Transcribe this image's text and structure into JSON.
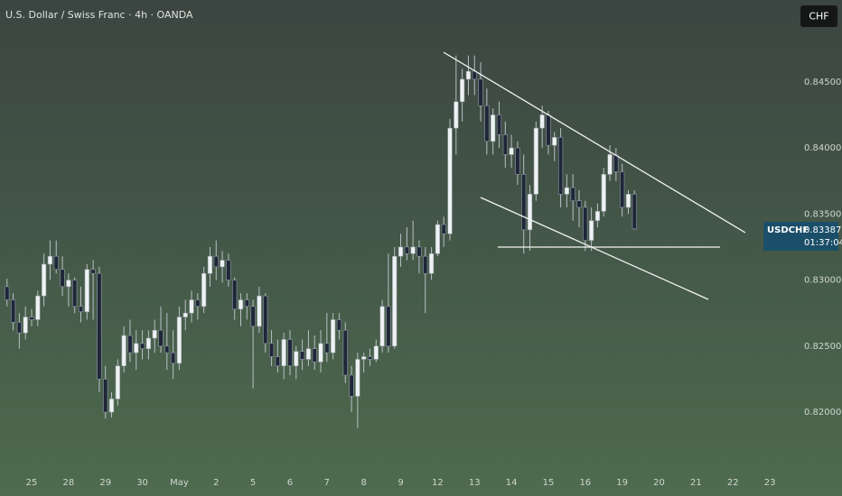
{
  "chart_data": {
    "type": "candlestick",
    "title": "U.S. Dollar / Swiss Franc · 4h · OANDA",
    "symbol": "USDCHF",
    "currency": "CHF",
    "countdown": "01:37:04",
    "colors": {
      "up": "#eef2f4",
      "down": "#1f2638",
      "wick": "#b8c0c4"
    },
    "x": [
      -4,
      -3,
      -2,
      -1,
      0,
      1,
      2,
      3,
      4,
      5,
      6,
      7,
      8,
      9,
      10,
      11,
      12,
      13,
      14,
      15,
      16,
      17,
      18,
      19,
      20,
      21,
      22,
      23,
      24,
      25,
      26,
      27,
      28,
      29,
      30,
      31,
      32,
      33,
      34,
      35,
      36,
      37,
      38,
      39,
      40,
      41,
      42,
      43,
      44,
      45,
      46,
      47,
      48,
      49,
      50,
      51,
      52,
      53,
      54,
      55,
      56,
      57,
      58,
      59,
      60,
      61,
      62,
      63,
      64,
      65,
      66,
      67,
      68,
      69,
      70,
      71,
      72,
      73,
      74,
      75,
      76,
      77,
      78,
      79,
      80,
      81,
      82,
      83,
      84,
      85,
      86,
      87,
      88,
      89,
      90,
      91,
      92,
      93,
      94,
      95,
      96,
      97,
      98
    ],
    "open": [
      0.8295,
      0.8285,
      0.8268,
      0.826,
      0.8272,
      0.827,
      0.8288,
      0.8312,
      0.8318,
      0.8308,
      0.8295,
      0.83,
      0.828,
      0.8276,
      0.8308,
      0.8305,
      0.8225,
      0.82,
      0.821,
      0.8235,
      0.8258,
      0.8245,
      0.8252,
      0.8248,
      0.8256,
      0.8262,
      0.825,
      0.8245,
      0.8237,
      0.8272,
      0.8275,
      0.8285,
      0.828,
      0.8305,
      0.8318,
      0.831,
      0.8315,
      0.83,
      0.8278,
      0.8285,
      0.828,
      0.8265,
      0.8288,
      0.8252,
      0.8242,
      0.8235,
      0.8255,
      0.8235,
      0.8246,
      0.824,
      0.8248,
      0.8238,
      0.8252,
      0.8245,
      0.827,
      0.8262,
      0.8228,
      0.8212,
      0.824,
      0.8242,
      0.824,
      0.825,
      0.828,
      0.825,
      0.8318,
      0.8325,
      0.832,
      0.8325,
      0.8318,
      0.8305,
      0.832,
      0.8342,
      0.8335,
      0.8415,
      0.8435,
      0.8452,
      0.8458,
      0.8452,
      0.8432,
      0.8405,
      0.8425,
      0.841,
      0.8395,
      0.84,
      0.838,
      0.8338,
      0.8365,
      0.8415,
      0.8425,
      0.8402,
      0.8408,
      0.8365,
      0.837,
      0.836,
      0.8355,
      0.833,
      0.8345,
      0.8352,
      0.838,
      0.8395,
      0.8382,
      0.8355,
      0.8365
    ],
    "high": [
      0.8301,
      0.829,
      0.8275,
      0.828,
      0.8278,
      0.8292,
      0.832,
      0.833,
      0.833,
      0.8318,
      0.8305,
      0.8302,
      0.8295,
      0.8312,
      0.8315,
      0.831,
      0.8235,
      0.8215,
      0.824,
      0.8265,
      0.827,
      0.8262,
      0.8262,
      0.8262,
      0.827,
      0.828,
      0.8275,
      0.8262,
      0.828,
      0.8285,
      0.8292,
      0.829,
      0.831,
      0.8325,
      0.833,
      0.8322,
      0.832,
      0.8302,
      0.829,
      0.829,
      0.8285,
      0.8295,
      0.829,
      0.8262,
      0.8255,
      0.826,
      0.8262,
      0.825,
      0.8255,
      0.8262,
      0.8258,
      0.8262,
      0.8275,
      0.8275,
      0.8275,
      0.8268,
      0.8235,
      0.8245,
      0.8245,
      0.8248,
      0.8255,
      0.8285,
      0.832,
      0.8325,
      0.8335,
      0.834,
      0.8345,
      0.833,
      0.8325,
      0.8325,
      0.8345,
      0.8348,
      0.8422,
      0.847,
      0.846,
      0.847,
      0.847,
      0.8465,
      0.8445,
      0.843,
      0.8435,
      0.842,
      0.841,
      0.8405,
      0.8395,
      0.8372,
      0.842,
      0.8432,
      0.8428,
      0.8412,
      0.8415,
      0.838,
      0.838,
      0.8368,
      0.836,
      0.8355,
      0.8358,
      0.8385,
      0.8402,
      0.84,
      0.8388,
      0.8368,
      0.8368
    ],
    "low": [
      0.828,
      0.8262,
      0.8248,
      0.8255,
      0.8265,
      0.8265,
      0.828,
      0.83,
      0.8305,
      0.8288,
      0.828,
      0.8275,
      0.8268,
      0.827,
      0.827,
      0.8215,
      0.8195,
      0.8196,
      0.8205,
      0.823,
      0.8238,
      0.8232,
      0.824,
      0.824,
      0.8245,
      0.8245,
      0.8232,
      0.8225,
      0.8232,
      0.8262,
      0.8268,
      0.827,
      0.8275,
      0.8295,
      0.83,
      0.8298,
      0.8295,
      0.827,
      0.8265,
      0.827,
      0.8218,
      0.826,
      0.8245,
      0.8235,
      0.823,
      0.8225,
      0.8228,
      0.8225,
      0.8232,
      0.8235,
      0.8232,
      0.823,
      0.8238,
      0.824,
      0.8255,
      0.8222,
      0.82,
      0.8188,
      0.823,
      0.8235,
      0.8238,
      0.8245,
      0.8245,
      0.8248,
      0.831,
      0.8315,
      0.8315,
      0.8305,
      0.8275,
      0.83,
      0.8318,
      0.8325,
      0.833,
      0.8395,
      0.842,
      0.844,
      0.844,
      0.842,
      0.8395,
      0.8395,
      0.84,
      0.8385,
      0.8385,
      0.8372,
      0.832,
      0.8322,
      0.836,
      0.84,
      0.8395,
      0.839,
      0.8355,
      0.8355,
      0.8345,
      0.834,
      0.8322,
      0.8322,
      0.834,
      0.8348,
      0.8375,
      0.8375,
      0.8348,
      0.835,
      0.8338
    ],
    "close": [
      0.8285,
      0.8268,
      0.826,
      0.8272,
      0.827,
      0.8288,
      0.8312,
      0.8318,
      0.8308,
      0.8295,
      0.83,
      0.828,
      0.8276,
      0.8308,
      0.8305,
      0.8225,
      0.82,
      0.821,
      0.8235,
      0.8258,
      0.8245,
      0.8252,
      0.8248,
      0.8256,
      0.8262,
      0.825,
      0.8245,
      0.8237,
      0.8272,
      0.8275,
      0.8285,
      0.828,
      0.8305,
      0.8318,
      0.831,
      0.8315,
      0.83,
      0.8278,
      0.8285,
      0.828,
      0.8265,
      0.8288,
      0.8252,
      0.8242,
      0.8235,
      0.8255,
      0.8235,
      0.8246,
      0.824,
      0.8248,
      0.8238,
      0.8252,
      0.8245,
      0.827,
      0.8262,
      0.8228,
      0.8212,
      0.824,
      0.8242,
      0.824,
      0.825,
      0.828,
      0.825,
      0.8318,
      0.8325,
      0.832,
      0.8325,
      0.8318,
      0.8305,
      0.832,
      0.8342,
      0.8335,
      0.8415,
      0.8435,
      0.8452,
      0.8458,
      0.8452,
      0.8432,
      0.8405,
      0.8425,
      0.841,
      0.8395,
      0.84,
      0.838,
      0.8338,
      0.8365,
      0.8415,
      0.8425,
      0.8402,
      0.8408,
      0.8365,
      0.837,
      0.836,
      0.8355,
      0.833,
      0.8345,
      0.8352,
      0.838,
      0.8395,
      0.8382,
      0.8355,
      0.8365,
      0.83387
    ],
    "xlim": [
      -5.14,
      124.1
    ],
    "xticks": [
      {
        "value": 0,
        "label": "25"
      },
      {
        "value": 6,
        "label": "28"
      },
      {
        "value": 12,
        "label": "29"
      },
      {
        "value": 18,
        "label": "30"
      },
      {
        "value": 24,
        "label": "May"
      },
      {
        "value": 30,
        "label": "2"
      },
      {
        "value": 36,
        "label": "5"
      },
      {
        "value": 42,
        "label": "6"
      },
      {
        "value": 48,
        "label": "7"
      },
      {
        "value": 54,
        "label": "8"
      },
      {
        "value": 60,
        "label": "9"
      },
      {
        "value": 66,
        "label": "12"
      },
      {
        "value": 72,
        "label": "13"
      },
      {
        "value": 78,
        "label": "14"
      },
      {
        "value": 84,
        "label": "15"
      },
      {
        "value": 90,
        "label": "16"
      },
      {
        "value": 96,
        "label": "19"
      },
      {
        "value": 102,
        "label": "20"
      },
      {
        "value": 108,
        "label": "21"
      },
      {
        "value": 114,
        "label": "22"
      },
      {
        "value": 120,
        "label": "23"
      }
    ],
    "ylim": [
      0.8157,
      0.8512
    ],
    "yticks": [
      {
        "value": 0.82,
        "label": "0.82000"
      },
      {
        "value": 0.825,
        "label": "0.82500"
      },
      {
        "value": 0.83,
        "label": "0.83000"
      },
      {
        "value": 0.835,
        "label": "0.83500"
      },
      {
        "value": 0.84,
        "label": "0.84000"
      },
      {
        "value": 0.845,
        "label": "0.84500"
      }
    ]
  }
}
